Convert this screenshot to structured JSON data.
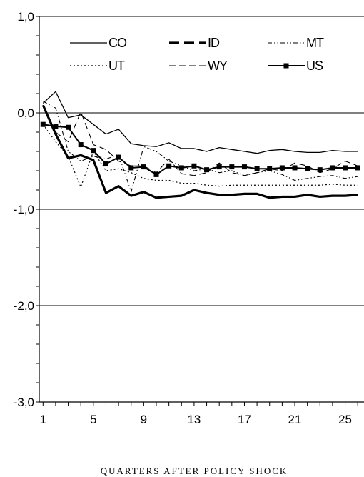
{
  "chart_data": {
    "type": "line",
    "title": "",
    "xlabel": "QUARTERS AFTER POLICY SHOCK",
    "ylabel": "",
    "xlim": [
      0.7,
      26.5
    ],
    "ylim": [
      -3.0,
      1.0
    ],
    "xticks": [
      1,
      5,
      9,
      13,
      17,
      21,
      25
    ],
    "yticks": [
      1.0,
      0.0,
      -1.0,
      -2.0,
      -3.0
    ],
    "ytick_labels": [
      "1,0",
      "0,0",
      "-1,0",
      "-2,0",
      "-3,0"
    ],
    "grid": "horizontal",
    "legend_position": "top",
    "x": [
      1,
      2,
      3,
      4,
      5,
      6,
      7,
      8,
      9,
      10,
      11,
      12,
      13,
      14,
      15,
      16,
      17,
      18,
      19,
      20,
      21,
      22,
      23,
      24,
      25,
      26
    ],
    "series": [
      {
        "name": "CO",
        "values": [
          0.1,
          0.22,
          -0.05,
          -0.02,
          -0.12,
          -0.22,
          -0.17,
          -0.32,
          -0.34,
          -0.35,
          -0.31,
          -0.37,
          -0.37,
          -0.4,
          -0.36,
          -0.38,
          -0.4,
          -0.42,
          -0.39,
          -0.38,
          -0.4,
          -0.41,
          -0.41,
          -0.39,
          -0.4,
          -0.4
        ]
      },
      {
        "name": "ID",
        "values": [
          0.08,
          -0.22,
          -0.47,
          -0.44,
          -0.49,
          -0.83,
          -0.76,
          -0.86,
          -0.82,
          -0.88,
          -0.87,
          -0.86,
          -0.8,
          -0.83,
          -0.85,
          -0.85,
          -0.84,
          -0.84,
          -0.88,
          -0.87,
          -0.87,
          -0.85,
          -0.87,
          -0.86,
          -0.86,
          -0.85
        ]
      },
      {
        "name": "MT",
        "values": [
          0.12,
          0.05,
          -0.4,
          -0.5,
          -0.45,
          -0.48,
          -0.43,
          -0.82,
          -0.35,
          -0.4,
          -0.5,
          -0.55,
          -0.6,
          -0.58,
          -0.62,
          -0.6,
          -0.65,
          -0.62,
          -0.6,
          -0.64,
          -0.7,
          -0.68,
          -0.66,
          -0.65,
          -0.68,
          -0.66
        ]
      },
      {
        "name": "UT",
        "values": [
          -0.12,
          -0.3,
          -0.45,
          -0.77,
          -0.4,
          -0.6,
          -0.58,
          -0.62,
          -0.68,
          -0.7,
          -0.7,
          -0.73,
          -0.73,
          -0.75,
          -0.76,
          -0.75,
          -0.75,
          -0.75,
          -0.75,
          -0.75,
          -0.75,
          -0.75,
          -0.75,
          -0.74,
          -0.75,
          -0.75
        ]
      },
      {
        "name": "WY",
        "values": [
          0.08,
          -0.2,
          -0.3,
          0.01,
          -0.33,
          -0.38,
          -0.5,
          -0.55,
          -0.55,
          -0.62,
          -0.48,
          -0.63,
          -0.65,
          -0.62,
          -0.52,
          -0.62,
          -0.65,
          -0.62,
          -0.58,
          -0.6,
          -0.52,
          -0.55,
          -0.62,
          -0.58,
          -0.5,
          -0.55
        ]
      },
      {
        "name": "US",
        "values": [
          -0.12,
          -0.14,
          -0.15,
          -0.33,
          -0.39,
          -0.53,
          -0.46,
          -0.57,
          -0.56,
          -0.64,
          -0.55,
          -0.57,
          -0.55,
          -0.59,
          -0.56,
          -0.56,
          -0.56,
          -0.58,
          -0.58,
          -0.57,
          -0.57,
          -0.58,
          -0.59,
          -0.57,
          -0.57,
          -0.57
        ]
      }
    ]
  }
}
